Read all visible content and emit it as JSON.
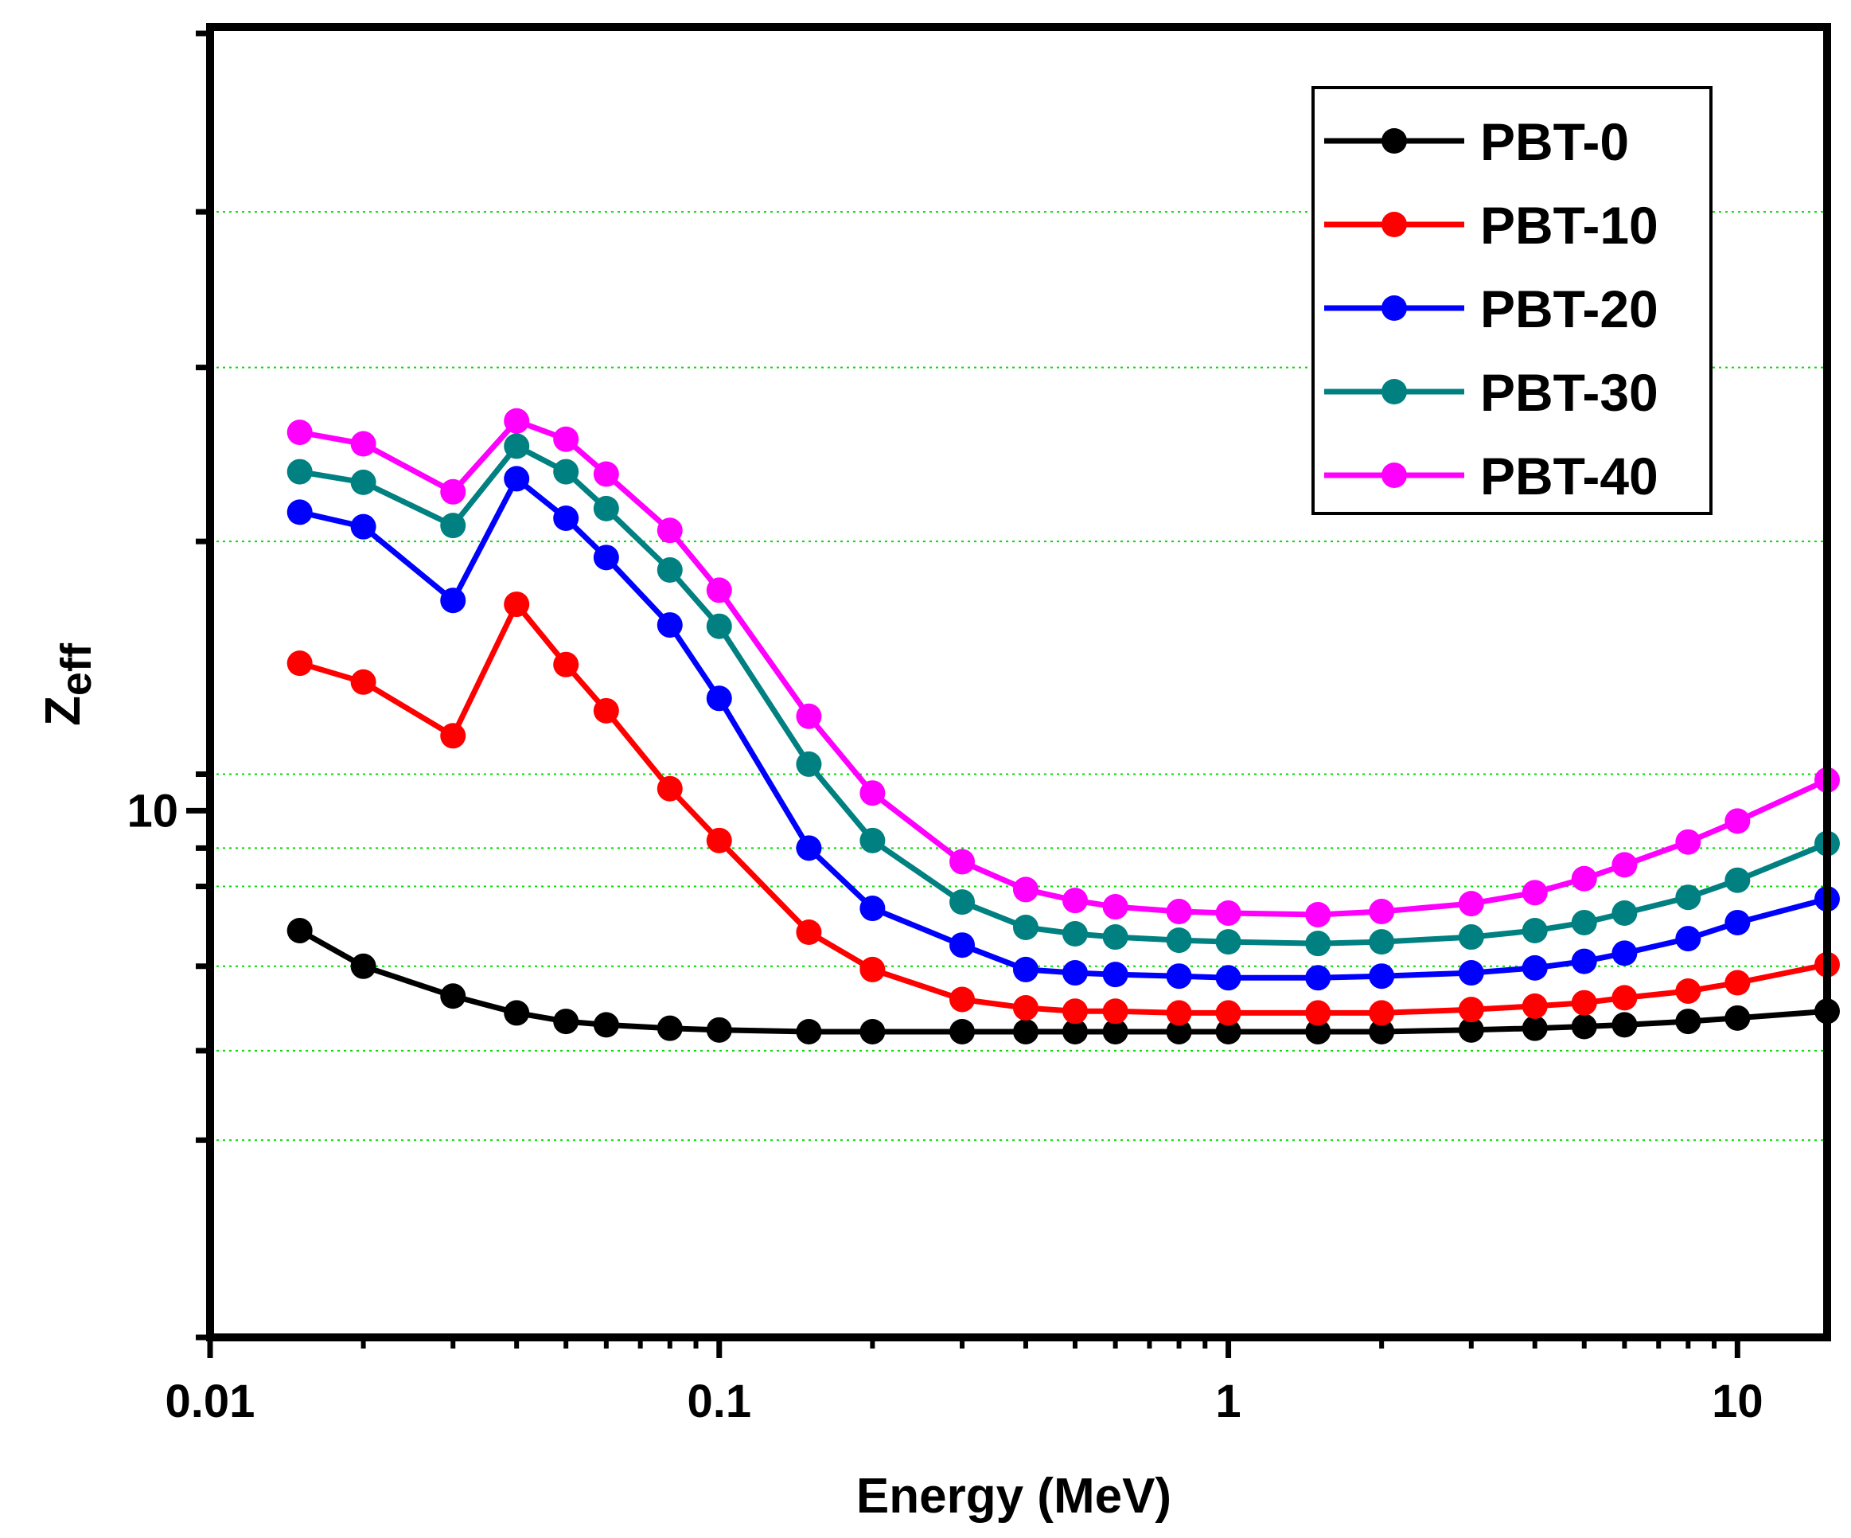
{
  "chart_data": {
    "type": "line",
    "title": "",
    "xlabel": "Energy (MeV)",
    "ylabel": "Z",
    "ylabel_subscript": "eff",
    "xscale": "log",
    "yscale": "log",
    "xlim": [
      0.01,
      15
    ],
    "ylim": [
      7,
      17
    ],
    "x_ticks": [
      0.01,
      0.1,
      1,
      10
    ],
    "x_tick_labels": [
      "0.01",
      "0.1",
      "1",
      "10"
    ],
    "y_tick_labels": [
      {
        "value": 10,
        "label": "10"
      }
    ],
    "y_gridlines": [
      8,
      8.5,
      9,
      9.5,
      9.75,
      10.25,
      12,
      13.5,
      15
    ],
    "grid": "horizontal dotted green",
    "legend_position": "top-right",
    "x": [
      0.015,
      0.02,
      0.03,
      0.04,
      0.05,
      0.06,
      0.08,
      0.1,
      0.15,
      0.2,
      0.3,
      0.4,
      0.5,
      0.6,
      0.8,
      1,
      1.5,
      2,
      3,
      4,
      5,
      6,
      8,
      10,
      15
    ],
    "series": [
      {
        "name": "PBT-0",
        "color": "#000000",
        "values": [
          9.22,
          9.0,
          8.82,
          8.72,
          8.67,
          8.65,
          8.63,
          8.62,
          8.61,
          8.61,
          8.61,
          8.61,
          8.61,
          8.61,
          8.61,
          8.61,
          8.61,
          8.61,
          8.62,
          8.63,
          8.64,
          8.65,
          8.67,
          8.69,
          8.73
        ]
      },
      {
        "name": "PBT-10",
        "color": "#ff0000",
        "values": [
          11.05,
          10.91,
          10.52,
          11.5,
          11.04,
          10.7,
          10.15,
          9.8,
          9.21,
          8.98,
          8.8,
          8.75,
          8.73,
          8.73,
          8.72,
          8.72,
          8.72,
          8.72,
          8.74,
          8.76,
          8.78,
          8.81,
          8.85,
          8.9,
          9.01
        ]
      },
      {
        "name": "PBT-20",
        "color": "#0000ff",
        "values": [
          12.24,
          12.12,
          11.53,
          12.52,
          12.19,
          11.87,
          11.34,
          10.79,
          9.75,
          9.36,
          9.13,
          8.98,
          8.96,
          8.95,
          8.94,
          8.93,
          8.93,
          8.94,
          8.96,
          8.99,
          9.03,
          9.08,
          9.17,
          9.27,
          9.42
        ]
      },
      {
        "name": "PBT-30",
        "color": "#008080",
        "values": [
          12.58,
          12.49,
          12.13,
          12.8,
          12.58,
          12.27,
          11.77,
          11.33,
          10.32,
          9.8,
          9.4,
          9.24,
          9.2,
          9.18,
          9.16,
          9.15,
          9.14,
          9.15,
          9.18,
          9.22,
          9.27,
          9.33,
          9.43,
          9.54,
          9.78
        ]
      },
      {
        "name": "PBT-40",
        "color": "#ff00ff",
        "values": [
          12.92,
          12.82,
          12.41,
          13.02,
          12.86,
          12.56,
          12.09,
          11.61,
          10.66,
          10.12,
          9.66,
          9.48,
          9.41,
          9.37,
          9.34,
          9.33,
          9.32,
          9.34,
          9.39,
          9.46,
          9.55,
          9.64,
          9.79,
          9.93,
          10.21
        ]
      }
    ]
  }
}
